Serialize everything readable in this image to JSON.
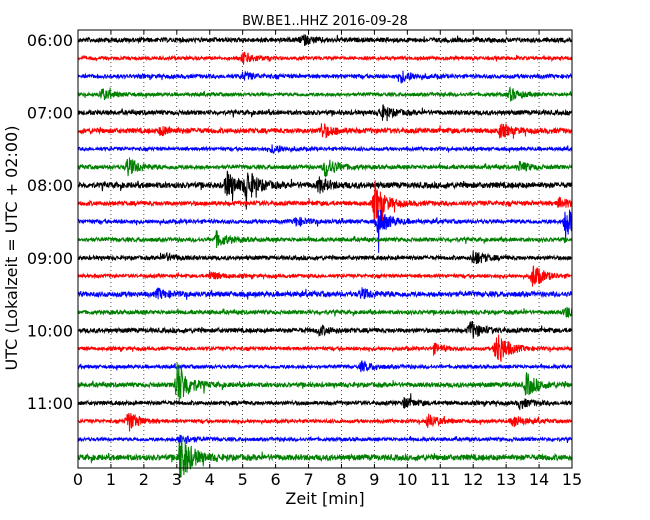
{
  "chart_data": {
    "type": "line",
    "title": "BW.BE1..HHZ 2016-09-28",
    "xlabel": "Zeit  [min]",
    "ylabel": "UTC (Lokalzeit = UTC + 02:00)",
    "xlim": [
      0,
      15
    ],
    "x_ticks": [
      "0",
      "1",
      "2",
      "3",
      "4",
      "5",
      "6",
      "7",
      "8",
      "9",
      "10",
      "11",
      "12",
      "13",
      "14",
      "15"
    ],
    "y_ticks": [
      "06:00",
      "07:00",
      "08:00",
      "09:00",
      "10:00",
      "11:00"
    ],
    "grid": "vertical dotted",
    "trace_interval_min": 15,
    "trace_start": "06:00",
    "trace_colors": [
      "#000000",
      "#ff0000",
      "#0000ff",
      "#008000"
    ],
    "traces": [
      {
        "start": "06:00",
        "amplitude": 0.16,
        "events": [
          {
            "t": 6.8,
            "a": 0.35
          }
        ]
      },
      {
        "start": "06:15",
        "amplitude": 0.12,
        "events": [
          {
            "t": 5.0,
            "a": 0.45
          }
        ]
      },
      {
        "start": "06:30",
        "amplitude": 0.14,
        "events": [
          {
            "t": 9.8,
            "a": 0.4
          },
          {
            "t": 5.0,
            "a": 0.25
          }
        ]
      },
      {
        "start": "06:45",
        "amplitude": 0.12,
        "events": [
          {
            "t": 0.7,
            "a": 0.4
          },
          {
            "t": 13.1,
            "a": 0.45
          }
        ]
      },
      {
        "start": "07:00",
        "amplitude": 0.16,
        "events": [
          {
            "t": 9.2,
            "a": 0.5
          }
        ]
      },
      {
        "start": "07:15",
        "amplitude": 0.18,
        "events": [
          {
            "t": 7.4,
            "a": 0.5
          },
          {
            "t": 12.8,
            "a": 0.45
          },
          {
            "t": 2.5,
            "a": 0.3
          }
        ]
      },
      {
        "start": "07:30",
        "amplitude": 0.12,
        "events": [
          {
            "t": 5.9,
            "a": 0.3
          }
        ]
      },
      {
        "start": "07:45",
        "amplitude": 0.14,
        "events": [
          {
            "t": 1.5,
            "a": 0.7
          },
          {
            "t": 7.5,
            "a": 0.75
          },
          {
            "t": 13.4,
            "a": 0.35
          }
        ]
      },
      {
        "start": "08:00",
        "amplitude": 0.2,
        "events": [
          {
            "t": 4.5,
            "a": 0.95
          },
          {
            "t": 5.1,
            "a": 1.05
          },
          {
            "t": 7.3,
            "a": 0.5
          }
        ]
      },
      {
        "start": "08:15",
        "amplitude": 0.16,
        "events": [
          {
            "t": 9.0,
            "a": 1.3
          },
          {
            "t": 14.6,
            "a": 0.35
          }
        ]
      },
      {
        "start": "08:30",
        "amplitude": 0.14,
        "events": [
          {
            "t": 9.1,
            "a": 1.0
          },
          {
            "t": 14.8,
            "a": 1.15
          },
          {
            "t": 6.6,
            "a": 0.3
          }
        ]
      },
      {
        "start": "08:45",
        "amplitude": 0.14,
        "events": [
          {
            "t": 4.2,
            "a": 0.55
          }
        ]
      },
      {
        "start": "09:00",
        "amplitude": 0.14,
        "events": [
          {
            "t": 12.0,
            "a": 0.55
          },
          {
            "t": 2.6,
            "a": 0.3
          }
        ]
      },
      {
        "start": "09:15",
        "amplitude": 0.12,
        "events": [
          {
            "t": 13.8,
            "a": 0.9
          },
          {
            "t": 4.0,
            "a": 0.3
          }
        ]
      },
      {
        "start": "09:30",
        "amplitude": 0.18,
        "events": [
          {
            "t": 8.6,
            "a": 0.35
          },
          {
            "t": 2.4,
            "a": 0.3
          }
        ]
      },
      {
        "start": "09:45",
        "amplitude": 0.14,
        "events": [
          {
            "t": 14.8,
            "a": 0.4
          }
        ]
      },
      {
        "start": "10:00",
        "amplitude": 0.16,
        "events": [
          {
            "t": 11.9,
            "a": 0.65
          },
          {
            "t": 7.3,
            "a": 0.3
          }
        ]
      },
      {
        "start": "10:15",
        "amplitude": 0.12,
        "events": [
          {
            "t": 12.7,
            "a": 1.4
          },
          {
            "t": 10.8,
            "a": 0.35
          }
        ]
      },
      {
        "start": "10:30",
        "amplitude": 0.12,
        "events": [
          {
            "t": 8.6,
            "a": 0.35
          }
        ]
      },
      {
        "start": "10:45",
        "amplitude": 0.16,
        "events": [
          {
            "t": 3.0,
            "a": 1.8
          },
          {
            "t": 13.6,
            "a": 0.85
          }
        ]
      },
      {
        "start": "11:00",
        "amplitude": 0.14,
        "events": [
          {
            "t": 9.9,
            "a": 0.35
          },
          {
            "t": 13.4,
            "a": 0.35
          }
        ]
      },
      {
        "start": "11:15",
        "amplitude": 0.12,
        "events": [
          {
            "t": 1.5,
            "a": 0.8
          },
          {
            "t": 10.6,
            "a": 0.5
          },
          {
            "t": 13.2,
            "a": 0.45
          }
        ]
      },
      {
        "start": "11:30",
        "amplitude": 0.12,
        "events": [
          {
            "t": 3.1,
            "a": 0.4
          }
        ]
      },
      {
        "start": "11:45",
        "amplitude": 0.2,
        "events": [
          {
            "t": 3.1,
            "a": 1.9
          }
        ]
      }
    ]
  }
}
